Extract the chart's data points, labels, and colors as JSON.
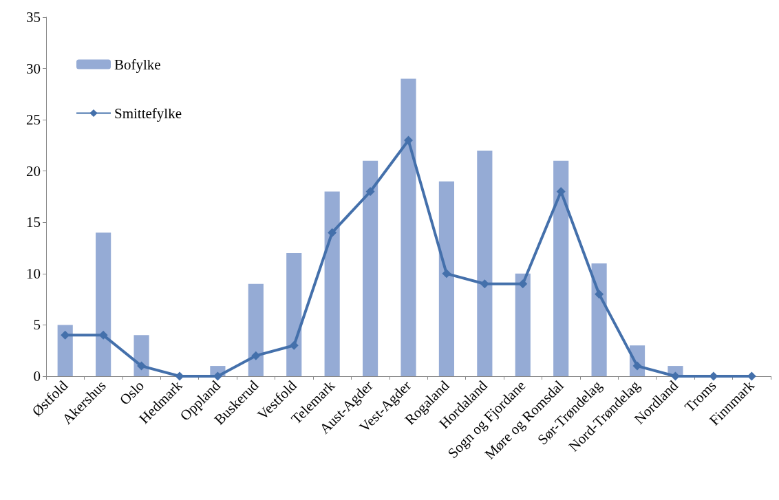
{
  "chart_data": {
    "type": "bar",
    "categories": [
      "Østfold",
      "Akershus",
      "Oslo",
      "Hedmark",
      "Oppland",
      "Buskerud",
      "Vestfold",
      "Telemark",
      "Aust-Agder",
      "Vest-Agder",
      "Rogaland",
      "Hordaland",
      "Sogn og Fjordane",
      "Møre og Romsdal",
      "Sør-Trøndelag",
      "Nord-Trøndelag",
      "Nordland",
      "Troms",
      "Finnmark"
    ],
    "series": [
      {
        "name": "Bofylke",
        "color": "#95abd5",
        "values": [
          5,
          14,
          4,
          0,
          1,
          9,
          12,
          18,
          21,
          29,
          19,
          22,
          10,
          21,
          11,
          3,
          1,
          0,
          0
        ]
      },
      {
        "name": "Smittefylke",
        "type": "line",
        "color": "#4470ab",
        "marker": "diamond",
        "line_style": "solid",
        "values": [
          4,
          4,
          1,
          0,
          0,
          2,
          3,
          14,
          18,
          23,
          10,
          9,
          9,
          18,
          8,
          1,
          0,
          0,
          0
        ]
      }
    ],
    "ylim": [
      0,
      35
    ],
    "yticks": [
      0,
      5,
      10,
      15,
      20,
      25,
      30,
      35
    ],
    "grid": false,
    "legend": "top left"
  }
}
